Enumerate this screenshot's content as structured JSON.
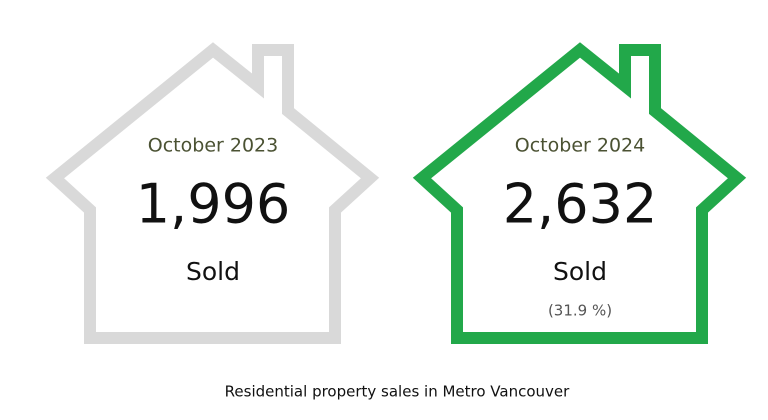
{
  "cards": [
    {
      "period": "October 2023",
      "value": "1,996",
      "label": "Sold"
    },
    {
      "period": "October 2024",
      "value": "2,632",
      "label": "Sold",
      "change": "(31.9 %)"
    }
  ],
  "caption": "Residential property sales in Metro Vancouver"
}
